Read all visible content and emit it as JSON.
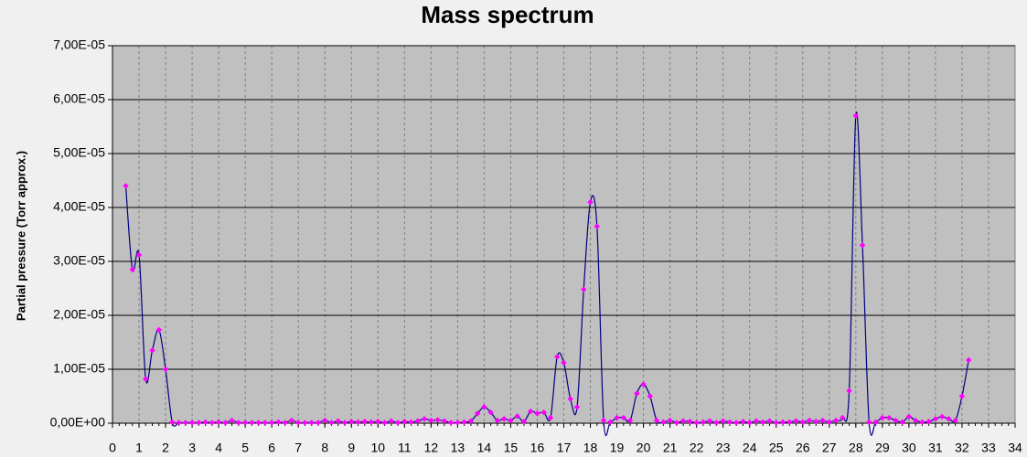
{
  "chart_data": {
    "type": "line",
    "title": "Mass spectrum",
    "y_label": "Partial pressure (Torr approx.)",
    "x": [
      0.5,
      0.75,
      1,
      1.25,
      1.5,
      1.75,
      2,
      2.25,
      2.5,
      2.75,
      3,
      3.25,
      3.5,
      3.75,
      4,
      4.25,
      4.5,
      4.75,
      5,
      5.25,
      5.5,
      5.75,
      6,
      6.25,
      6.5,
      6.75,
      7,
      7.25,
      7.5,
      7.75,
      8,
      8.25,
      8.5,
      8.75,
      9,
      9.25,
      9.5,
      9.75,
      10,
      10.25,
      10.5,
      10.75,
      11,
      11.25,
      11.5,
      11.75,
      12,
      12.25,
      12.5,
      12.75,
      13,
      13.25,
      13.5,
      13.75,
      14,
      14.25,
      14.5,
      14.75,
      15,
      15.25,
      15.5,
      15.75,
      16,
      16.25,
      16.5,
      16.75,
      17,
      17.25,
      17.5,
      17.75,
      18,
      18.25,
      18.5,
      18.75,
      19,
      19.25,
      19.5,
      19.75,
      20,
      20.25,
      20.5,
      20.75,
      21,
      21.25,
      21.5,
      21.75,
      22,
      22.25,
      22.5,
      22.75,
      23,
      23.25,
      23.5,
      23.75,
      24,
      24.25,
      24.5,
      24.75,
      25,
      25.25,
      25.5,
      25.75,
      26,
      26.25,
      26.5,
      26.75,
      27,
      27.25,
      27.5,
      27.75,
      28,
      28.25,
      28.5,
      28.75,
      29,
      29.25,
      29.5,
      29.75,
      30,
      30.25,
      30.5,
      30.75,
      31,
      31.25,
      31.5,
      31.75,
      32,
      32.25
    ],
    "series": [
      {
        "color": "#000080",
        "marker_color": "#ff00ff",
        "values": [
          4.4e-05,
          2.85e-05,
          3.12e-05,
          8.2e-06,
          1.35e-05,
          1.73e-05,
          1e-05,
          2e-07,
          1e-07,
          1e-07,
          1e-07,
          1e-07,
          2e-07,
          1e-07,
          2e-07,
          1e-07,
          5e-07,
          1e-07,
          1e-07,
          1e-07,
          1e-07,
          1e-07,
          1e-07,
          2e-07,
          1e-07,
          5e-07,
          1e-07,
          1e-07,
          1e-07,
          1e-07,
          5e-07,
          1e-07,
          4e-07,
          1e-07,
          3e-07,
          2e-07,
          3e-07,
          2e-07,
          3e-07,
          1e-07,
          4e-07,
          1e-07,
          3e-07,
          2e-07,
          4e-07,
          8e-07,
          5e-07,
          6e-07,
          4e-07,
          1e-07,
          1e-07,
          2e-07,
          4e-07,
          1.8e-06,
          3e-06,
          2e-06,
          5e-07,
          8e-07,
          5e-07,
          1.3e-06,
          3e-07,
          2.2e-06,
          1.8e-06,
          2e-06,
          1e-06,
          1.23e-05,
          1.12e-05,
          4.5e-06,
          3e-06,
          2.48e-05,
          4.1e-05,
          3.65e-05,
          5e-07,
          2e-07,
          1e-06,
          1e-06,
          5e-07,
          5.5e-06,
          7.2e-06,
          5e-06,
          5e-07,
          2e-07,
          5e-07,
          1e-07,
          4e-07,
          3e-07,
          1e-07,
          2e-07,
          4e-07,
          1e-07,
          4e-07,
          2e-07,
          1e-07,
          3e-07,
          1e-07,
          4e-07,
          2e-07,
          4e-07,
          1e-07,
          2e-07,
          2e-07,
          4e-07,
          2e-07,
          5e-07,
          3e-07,
          5e-07,
          2e-07,
          5e-07,
          1e-06,
          6e-06,
          5.7e-05,
          3.3e-05,
          2e-07,
          2e-07,
          1e-06,
          1e-06,
          5e-07,
          2e-07,
          1.2e-06,
          5e-07,
          2e-07,
          3e-07,
          8e-07,
          1.2e-06,
          8e-07,
          5e-07,
          5e-06,
          1.17e-05
        ]
      }
    ],
    "xlim": [
      0,
      34
    ],
    "xticks": [
      0,
      1,
      2,
      3,
      4,
      5,
      6,
      7,
      8,
      9,
      10,
      11,
      12,
      13,
      14,
      15,
      16,
      17,
      18,
      19,
      20,
      21,
      22,
      23,
      24,
      25,
      26,
      27,
      28,
      29,
      30,
      31,
      32,
      33,
      34
    ],
    "ylim": [
      0,
      7e-05
    ],
    "yticks": [
      {
        "value": 0,
        "label": "0,00E+00"
      },
      {
        "value": 1e-05,
        "label": "1,00E-05"
      },
      {
        "value": 2e-05,
        "label": "2,00E-05"
      },
      {
        "value": 3e-05,
        "label": "3,00E-05"
      },
      {
        "value": 4e-05,
        "label": "4,00E-05"
      },
      {
        "value": 5e-05,
        "label": "5,00E-05"
      },
      {
        "value": 6e-05,
        "label": "6,00E-05"
      },
      {
        "value": 7e-05,
        "label": "7,00E-05"
      }
    ],
    "grid": true
  }
}
